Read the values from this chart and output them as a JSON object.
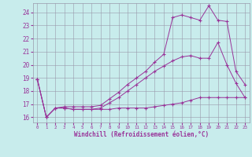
{
  "background_color": "#c8ecec",
  "line_color": "#993399",
  "grid_color": "#9999aa",
  "xlabel": "Windchill (Refroidissement éolien,°C)",
  "xlim": [
    -0.5,
    23.5
  ],
  "ylim": [
    15.6,
    24.7
  ],
  "yticks": [
    16,
    17,
    18,
    19,
    20,
    21,
    22,
    23,
    24
  ],
  "xticks": [
    0,
    1,
    2,
    3,
    4,
    5,
    6,
    7,
    8,
    9,
    10,
    11,
    12,
    13,
    14,
    15,
    16,
    17,
    18,
    19,
    20,
    21,
    22,
    23
  ],
  "series": [
    {
      "x": [
        0,
        1,
        2,
        3,
        4,
        5,
        6,
        7,
        8,
        9,
        10,
        11,
        12,
        13,
        14,
        15,
        16,
        17,
        18,
        19,
        20,
        21,
        22,
        23
      ],
      "y": [
        18.9,
        16.0,
        16.7,
        16.7,
        16.6,
        16.6,
        16.6,
        16.7,
        17.1,
        17.5,
        18.0,
        18.5,
        19.0,
        19.5,
        19.9,
        20.3,
        20.6,
        20.7,
        20.5,
        20.5,
        21.7,
        20.0,
        18.6,
        17.5
      ]
    },
    {
      "x": [
        0,
        1,
        2,
        3,
        4,
        5,
        6,
        7,
        8,
        9,
        10,
        11,
        12,
        13,
        14,
        15,
        16,
        17,
        18,
        19,
        20,
        21,
        22,
        23
      ],
      "y": [
        18.9,
        16.0,
        16.7,
        16.7,
        16.6,
        16.6,
        16.6,
        16.6,
        16.6,
        16.7,
        16.7,
        16.7,
        16.7,
        16.8,
        16.9,
        17.0,
        17.1,
        17.3,
        17.5,
        17.5,
        17.5,
        17.5,
        17.5,
        17.5
      ]
    },
    {
      "x": [
        0,
        1,
        2,
        3,
        4,
        5,
        6,
        7,
        8,
        9,
        10,
        11,
        12,
        13,
        14,
        15,
        16,
        17,
        18,
        19,
        20,
        21,
        22,
        23
      ],
      "y": [
        18.9,
        16.0,
        16.7,
        16.8,
        16.8,
        16.8,
        16.8,
        16.9,
        17.4,
        17.9,
        18.5,
        19.0,
        19.5,
        20.2,
        20.8,
        23.6,
        23.8,
        23.6,
        23.4,
        24.5,
        23.4,
        23.3,
        19.5,
        18.5
      ]
    }
  ]
}
